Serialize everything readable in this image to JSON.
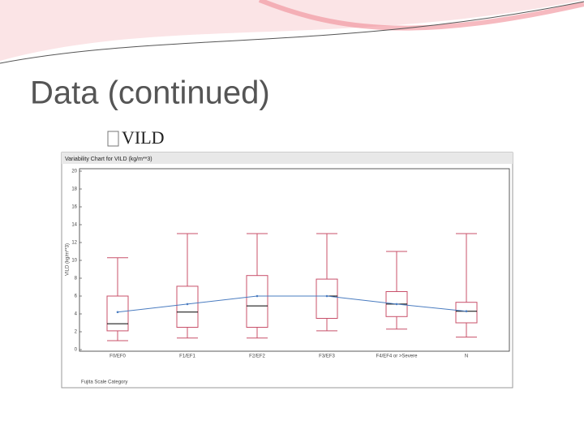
{
  "slide": {
    "title": "Data (continued)",
    "bullet": "VILD"
  },
  "chart_data": {
    "type": "box",
    "title": "Variability Chart for VILD (kg/m**3)",
    "y_label": "VILD (kg/m**3)",
    "x_label": "Fujita Scale Category",
    "categories": [
      "F0/EF0",
      "F1/EF1",
      "F2/EF2",
      "F3/EF3",
      "F4/EF4 or >Severe",
      "N"
    ],
    "boxes": [
      {
        "low": 1.0,
        "q1": 2.1,
        "median": 2.9,
        "q3": 6.0,
        "high": 10.3
      },
      {
        "low": 1.3,
        "q1": 2.5,
        "median": 4.2,
        "q3": 7.1,
        "high": 13.0
      },
      {
        "low": 1.3,
        "q1": 2.5,
        "median": 4.9,
        "q3": 8.3,
        "high": 13.0
      },
      {
        "low": 2.1,
        "q1": 3.5,
        "median": 6.0,
        "q3": 7.9,
        "high": 13.0
      },
      {
        "low": 2.3,
        "q1": 3.7,
        "median": 5.1,
        "q3": 6.5,
        "high": 11.0
      },
      {
        "low": 1.4,
        "q1": 3.0,
        "median": 4.3,
        "q3": 5.3,
        "high": 13.0
      }
    ],
    "means": [
      4.2,
      5.1,
      6.0,
      6.0,
      5.1,
      4.3
    ],
    "box_color": "#c8506a",
    "median_color": "#000000",
    "mean_color": "#4a7cc0",
    "ylim": [
      0,
      20
    ],
    "yticks": [
      0,
      2,
      4,
      6,
      8,
      10,
      12,
      14,
      16,
      18,
      20
    ]
  }
}
